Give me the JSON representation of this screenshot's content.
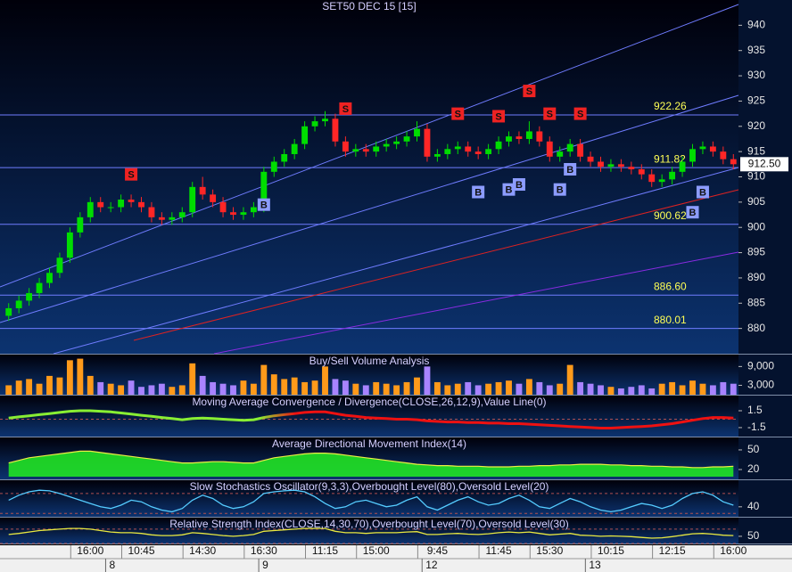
{
  "chart_data": [
    {
      "type": "candlestick",
      "title": "SET50 DEC 15  [15]",
      "categories": [
        null,
        null,
        null,
        null,
        null,
        null,
        null,
        null,
        "16:00",
        null,
        null,
        null,
        null,
        "10:45",
        null,
        null,
        null,
        null,
        null,
        "14:30",
        null,
        null,
        null,
        null,
        null,
        "16:30",
        null,
        null,
        null,
        null,
        null,
        "11:15",
        null,
        null,
        null,
        null,
        "15:00",
        null,
        null,
        null,
        null,
        null,
        "9:45",
        null,
        null,
        null,
        null,
        null,
        "11:45",
        null,
        null,
        null,
        null,
        "15:30",
        null,
        null,
        null,
        null,
        null,
        "10:15",
        null,
        null,
        null,
        null,
        null,
        "12:15",
        null,
        null,
        null,
        null,
        null,
        "16:00"
      ],
      "day_labels": [
        null,
        null,
        null,
        null,
        null,
        null,
        null,
        null,
        null,
        null,
        "8",
        null,
        null,
        null,
        null,
        null,
        null,
        null,
        null,
        null,
        null,
        null,
        null,
        null,
        null,
        "9",
        null,
        null,
        null,
        null,
        null,
        null,
        null,
        null,
        null,
        null,
        null,
        null,
        null,
        null,
        null,
        "12",
        null,
        null,
        null,
        null,
        null,
        null,
        null,
        null,
        null,
        null,
        null,
        null,
        null,
        null,
        null,
        "13",
        null,
        null,
        null,
        null,
        null,
        null,
        null,
        null,
        null,
        null,
        null,
        null,
        null,
        null
      ],
      "open": [
        882.5,
        884,
        885.5,
        887,
        889,
        891,
        894,
        899,
        902,
        905,
        904,
        904,
        905.5,
        905,
        904,
        902,
        901.5,
        902,
        903,
        908,
        906.5,
        905,
        903,
        902.5,
        903,
        904,
        911,
        913,
        914.5,
        916.5,
        920,
        921,
        921.5,
        917,
        915,
        915.5,
        915,
        916,
        916.5,
        917,
        918,
        919.5,
        914,
        914.5,
        915.5,
        916,
        915,
        914.5,
        915.5,
        917,
        918,
        917.5,
        919,
        917,
        914,
        915,
        916.5,
        914,
        913,
        912,
        912.5,
        912,
        911.5,
        910.5,
        909,
        909.5,
        911,
        913,
        915.5,
        916,
        915,
        913.5
      ],
      "high": [
        885,
        886.5,
        888,
        890,
        892,
        895,
        900,
        903,
        906,
        906,
        905,
        906.5,
        906.5,
        906,
        905,
        903,
        903,
        904,
        909,
        910,
        907.5,
        906,
        904,
        904,
        905,
        912,
        914,
        915.5,
        917.5,
        921,
        922,
        923,
        922.5,
        918,
        916.5,
        916.5,
        917,
        917.5,
        918,
        919,
        921,
        920.5,
        915.5,
        916.5,
        917,
        917,
        916,
        916.5,
        918,
        919,
        919,
        921,
        920,
        918,
        916,
        917.5,
        917.5,
        915,
        914,
        913.5,
        913.5,
        913,
        912.5,
        911.5,
        910.5,
        912,
        914,
        916.5,
        917,
        917,
        916,
        914.5
      ],
      "low": [
        881.5,
        883,
        884.5,
        886,
        888,
        890,
        893,
        898,
        901,
        903,
        903,
        903,
        904,
        903,
        901,
        900.5,
        900.5,
        901,
        902,
        905.5,
        904,
        902,
        901.5,
        901.5,
        902,
        903,
        910,
        912,
        913.5,
        915.5,
        919,
        920,
        916,
        914,
        914,
        914,
        914,
        915,
        915.5,
        916,
        917,
        913,
        913,
        913.5,
        914.5,
        914,
        913.5,
        913.5,
        914.5,
        916,
        916.5,
        916.5,
        916,
        913,
        913,
        914,
        913,
        912,
        911,
        911,
        911,
        910.5,
        909.5,
        908,
        908,
        908.5,
        910,
        912,
        914.5,
        914,
        912.5,
        911.5
      ],
      "close": [
        884,
        885.5,
        887,
        889,
        891,
        894,
        899,
        902,
        905,
        904,
        904,
        905.5,
        905,
        904,
        902,
        901.5,
        902,
        903,
        908,
        906.5,
        905,
        903,
        902.5,
        903,
        904,
        911,
        913,
        914.5,
        916.5,
        920,
        921,
        921.5,
        917,
        915,
        915.5,
        915,
        916,
        916.5,
        917,
        918,
        919.5,
        914,
        914.5,
        915.5,
        916,
        915,
        914.5,
        915.5,
        917,
        918,
        917.5,
        919,
        917,
        914,
        915,
        916.5,
        914,
        913,
        912,
        912.5,
        912,
        911.5,
        910.5,
        909,
        909.5,
        911,
        913,
        915.5,
        916,
        915,
        913.5,
        912.5
      ],
      "up_color": "#00dd00",
      "down_color": "#ff2626",
      "ylim": [
        875,
        945
      ],
      "yticks": [
        880,
        885,
        890,
        895,
        900,
        905,
        910,
        915,
        920,
        925,
        930,
        935,
        940
      ],
      "grid": false,
      "level_color": "#6f7cff",
      "levels": [
        922.26,
        911.82,
        900.62,
        {
          "value": 886.6,
          "label": "886.60"
        },
        880.01
      ],
      "last_price": {
        "value": 912.5,
        "label": "912.50"
      },
      "sell_signals": {
        "label": "S",
        "color": "#ee2222",
        "values": [
          null,
          null,
          null,
          null,
          null,
          null,
          null,
          null,
          null,
          null,
          null,
          null,
          910.5,
          null,
          null,
          null,
          null,
          null,
          null,
          null,
          null,
          null,
          null,
          null,
          null,
          null,
          null,
          null,
          null,
          null,
          null,
          null,
          null,
          923.5,
          null,
          null,
          null,
          null,
          null,
          null,
          null,
          null,
          null,
          null,
          922.5,
          null,
          null,
          null,
          922,
          null,
          null,
          927,
          null,
          922.5,
          null,
          null,
          922.5,
          null,
          null,
          null,
          null,
          null,
          null,
          null,
          null,
          null,
          null,
          null,
          null,
          null,
          null,
          null
        ]
      },
      "buy_signals": {
        "label": "B",
        "color": "#8c9cff",
        "values": [
          null,
          null,
          null,
          null,
          null,
          null,
          null,
          null,
          null,
          null,
          null,
          null,
          null,
          null,
          null,
          null,
          null,
          null,
          null,
          null,
          null,
          null,
          null,
          null,
          null,
          904.5,
          null,
          null,
          null,
          null,
          null,
          null,
          null,
          null,
          null,
          null,
          null,
          null,
          null,
          null,
          null,
          null,
          null,
          null,
          null,
          null,
          907,
          null,
          null,
          907.5,
          908.5,
          null,
          null,
          null,
          907.5,
          911.5,
          null,
          null,
          null,
          null,
          null,
          null,
          null,
          null,
          null,
          null,
          null,
          903,
          907,
          null,
          null,
          null
        ]
      }
    },
    {
      "type": "bar",
      "title": "Buy/Sell Volume Analysis",
      "values": [
        3000,
        4500,
        5000,
        3500,
        6000,
        5500,
        11000,
        11500,
        6000,
        4000,
        3500,
        3000,
        4500,
        2500,
        3000,
        3500,
        2500,
        3000,
        10000,
        6000,
        4000,
        3500,
        3000,
        4500,
        3500,
        9500,
        6500,
        5000,
        5500,
        4000,
        4500,
        9000,
        5000,
        4500,
        3500,
        3000,
        4000,
        3500,
        3000,
        4000,
        5500,
        9000,
        4000,
        3000,
        3500,
        4000,
        3000,
        3500,
        4000,
        4500,
        3500,
        5000,
        4000,
        3000,
        3500,
        9500,
        4000,
        3500,
        3000,
        2500,
        2000,
        2500,
        3000,
        2000,
        3500,
        4000,
        3000,
        4500,
        3500,
        3000,
        4000,
        3500
      ],
      "up_color": "#ff9a1a",
      "down_color": "#a883ff",
      "ylim": [
        0,
        12800
      ],
      "yticks": [
        {
          "value": 3000,
          "label": "3,000"
        },
        {
          "value": 9000,
          "label": "9,000"
        }
      ]
    },
    {
      "type": "line",
      "title": "Moving Average Convergence / Divergence(CLOSE,26,12,9),Value Line(0)",
      "values": [
        0.2,
        0.4,
        0.6,
        0.8,
        1.0,
        1.2,
        1.4,
        1.5,
        1.5,
        1.4,
        1.3,
        1.1,
        0.9,
        0.7,
        0.5,
        0.3,
        0.1,
        -0.1,
        0.1,
        0.2,
        0.1,
        0,
        -0.1,
        -0.2,
        -0.1,
        0.3,
        0.6,
        0.8,
        1.0,
        1.2,
        1.3,
        1.3,
        1.0,
        0.7,
        0.5,
        0.3,
        0.2,
        0.1,
        0,
        0,
        -0.1,
        -0.3,
        -0.4,
        -0.5,
        -0.5,
        -0.6,
        -0.6,
        -0.7,
        -0.7,
        -0.8,
        -0.8,
        -0.9,
        -1.0,
        -1.1,
        -1.2,
        -1.3,
        -1.4,
        -1.5,
        -1.6,
        -1.6,
        -1.5,
        -1.4,
        -1.3,
        -1.2,
        -1.0,
        -0.8,
        -0.5,
        -0.2,
        0.1,
        0.3,
        0.3,
        0.2
      ],
      "colors": [
        "#88ee33",
        "#ee1111"
      ],
      "ref_lines": [
        0
      ],
      "ylim": [
        -3.1,
        4.2
      ],
      "yticks": [
        1.5,
        -1.5
      ]
    },
    {
      "type": "area",
      "title": "Average Directional Movement Index(14)",
      "values": [
        30,
        34,
        38,
        40,
        42,
        44,
        46,
        48,
        48,
        46,
        44,
        42,
        40,
        38,
        36,
        34,
        32,
        30,
        30,
        31,
        32,
        32,
        31,
        30,
        30,
        34,
        38,
        40,
        42,
        44,
        45,
        45,
        44,
        42,
        40,
        38,
        36,
        34,
        32,
        30,
        28,
        27,
        26,
        26,
        25,
        25,
        25,
        24,
        24,
        24,
        25,
        25,
        26,
        26,
        27,
        27,
        28,
        28,
        28,
        27,
        27,
        26,
        26,
        25,
        25,
        24,
        24,
        23,
        23,
        24,
        24,
        25
      ],
      "color": "#22ee22",
      "line_color": "#eeee44",
      "ylim": [
        5,
        69
      ],
      "yticks": [
        50,
        20
      ]
    },
    {
      "type": "line",
      "title": "Slow Stochastics Oscillator(9,3,3),Overbought Level(80),Oversold Level(20)",
      "values": [
        60,
        75,
        85,
        90,
        88,
        80,
        70,
        60,
        50,
        40,
        35,
        45,
        60,
        55,
        40,
        30,
        25,
        35,
        60,
        75,
        65,
        45,
        35,
        40,
        55,
        80,
        85,
        88,
        90,
        85,
        70,
        50,
        35,
        40,
        55,
        60,
        50,
        40,
        45,
        60,
        70,
        40,
        30,
        45,
        60,
        70,
        55,
        45,
        50,
        65,
        75,
        60,
        40,
        35,
        50,
        65,
        55,
        40,
        30,
        25,
        30,
        40,
        50,
        45,
        35,
        45,
        65,
        80,
        85,
        75,
        55,
        45
      ],
      "colors": [
        "#55ccff",
        "#55ccff"
      ],
      "ref_lines": [
        80,
        20
      ],
      "ylim": [
        10,
        120
      ],
      "yticks": [
        40
      ]
    },
    {
      "type": "line",
      "title": "Relative Strength Index(CLOSE,14,30,70),Overbought Level(70),Oversold Level(30)",
      "values": [
        55,
        58,
        62,
        66,
        68,
        70,
        72,
        72,
        70,
        66,
        62,
        60,
        60,
        58,
        54,
        52,
        52,
        54,
        60,
        58,
        55,
        52,
        50,
        52,
        55,
        64,
        66,
        68,
        70,
        72,
        72,
        72,
        64,
        60,
        60,
        58,
        60,
        60,
        60,
        62,
        63,
        55,
        55,
        57,
        58,
        56,
        55,
        57,
        60,
        62,
        60,
        62,
        58,
        54,
        56,
        58,
        53,
        52,
        50,
        51,
        50,
        49,
        47,
        45,
        46,
        49,
        53,
        57,
        58,
        56,
        53,
        52
      ],
      "colors": [
        "#e8e840",
        "#e8e840"
      ],
      "ref_lines": [
        70,
        30
      ],
      "ylim": [
        30,
        102
      ],
      "yticks": [
        50
      ]
    }
  ]
}
